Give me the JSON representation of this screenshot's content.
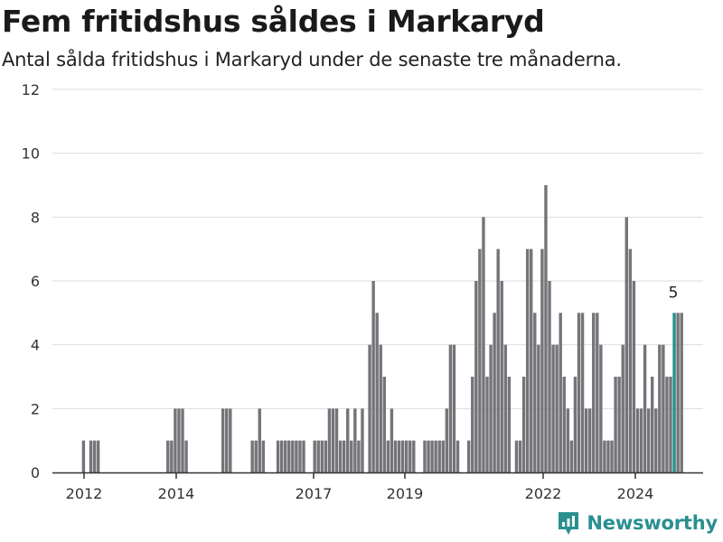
{
  "title": "Fem fritidshus såldes i Markaryd",
  "subtitle": "Antal sålda fritidshus i Markaryd under de senaste tre månaderna.",
  "brand": {
    "name": "Newsworthy",
    "icon": "newsworthy-logo-icon"
  },
  "colors": {
    "bar": "#747479",
    "highlight": "#24918a",
    "grid": "#dddddd",
    "axis": "#333333"
  },
  "chart_data": {
    "type": "bar",
    "grid": true,
    "ylim": [
      0,
      12
    ],
    "yticks": [
      0,
      2,
      4,
      6,
      8,
      10,
      12
    ],
    "x_tick_labels": [
      "2012",
      "2014",
      "2017",
      "2019",
      "2022",
      "2024"
    ],
    "values": [
      1,
      0,
      1,
      1,
      1,
      0,
      0,
      0,
      0,
      0,
      0,
      0,
      0,
      0,
      0,
      0,
      0,
      0,
      0,
      0,
      0,
      0,
      0,
      1,
      1,
      2,
      2,
      2,
      1,
      0,
      0,
      0,
      0,
      0,
      0,
      0,
      0,
      0,
      2,
      2,
      2,
      0,
      0,
      0,
      0,
      0,
      1,
      1,
      2,
      1,
      0,
      0,
      0,
      1,
      1,
      1,
      1,
      1,
      1,
      1,
      1,
      0,
      0,
      1,
      1,
      1,
      1,
      2,
      2,
      2,
      1,
      1,
      2,
      1,
      2,
      1,
      2,
      0,
      4,
      6,
      5,
      4,
      3,
      1,
      2,
      1,
      1,
      1,
      1,
      1,
      1,
      0,
      0,
      1,
      1,
      1,
      1,
      1,
      1,
      2,
      4,
      4,
      1,
      0,
      0,
      1,
      3,
      6,
      7,
      8,
      3,
      4,
      5,
      7,
      6,
      4,
      3,
      0,
      1,
      1,
      3,
      7,
      7,
      5,
      4,
      7,
      9,
      6,
      4,
      4,
      5,
      3,
      2,
      1,
      3,
      5,
      5,
      2,
      2,
      5,
      5,
      4,
      1,
      1,
      1,
      3,
      3,
      4,
      8,
      7,
      6,
      2,
      2,
      4,
      2,
      3,
      2,
      4,
      4,
      3,
      3,
      5,
      5,
      5
    ],
    "highlight_index": 161,
    "highlight_label": "5"
  }
}
